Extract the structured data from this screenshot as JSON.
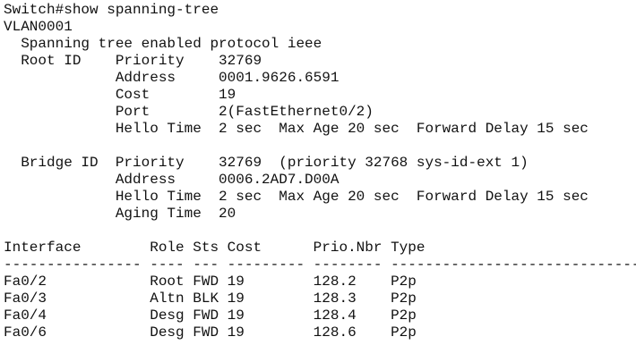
{
  "terminal": {
    "lines": [
      "Switch#show spanning-tree",
      "VLAN0001",
      "  Spanning tree enabled protocol ieee",
      "  Root ID    Priority    32769",
      "             Address     0001.9626.6591",
      "             Cost        19",
      "             Port        2(FastEthernet0/2)",
      "             Hello Time  2 sec  Max Age 20 sec  Forward Delay 15 sec",
      "",
      "  Bridge ID  Priority    32769  (priority 32768 sys-id-ext 1)",
      "             Address     0006.2AD7.D00A",
      "             Hello Time  2 sec  Max Age 20 sec  Forward Delay 15 sec",
      "             Aging Time  20",
      "",
      "Interface        Role Sts Cost      Prio.Nbr Type",
      "---------------- ---- --- --------- -------- --------------------------------",
      "Fa0/2            Root FWD 19        128.2    P2p",
      "Fa0/3            Altn BLK 19        128.3    P2p",
      "Fa0/4            Desg FWD 19        128.4    P2p",
      "Fa0/6            Desg FWD 19        128.6    P2p",
      "",
      "  . ."
    ],
    "colors": {
      "text": "#111111",
      "background": "#ffffff"
    }
  }
}
